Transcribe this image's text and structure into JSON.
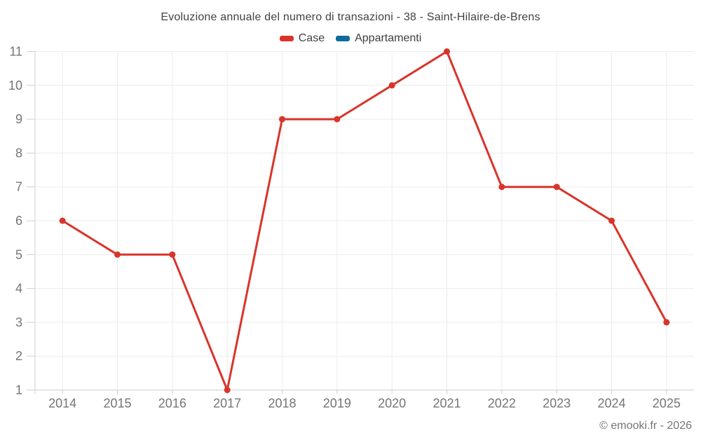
{
  "title": "Evoluzione annuale del numero di transazioni - 38 - Saint-Hilaire-de-Brens",
  "legend": {
    "items": [
      {
        "label": "Case",
        "color": "#d9342b"
      },
      {
        "label": "Appartamenti",
        "color": "#0d6c9a"
      }
    ]
  },
  "watermark": "© emooki.fr - 2026",
  "colors": {
    "grid": "#ececec",
    "axis": "#cfcfcf",
    "tick_label": "#757575",
    "title_text": "#424242",
    "case_red": "#d9342b",
    "appartamenti_blue": "#0d6c9a"
  },
  "chart_data": {
    "type": "line",
    "title": "Evoluzione annuale del numero di transazioni - 38 - Saint-Hilaire-de-Brens",
    "x": [
      "2014",
      "2015",
      "2016",
      "2017",
      "2018",
      "2019",
      "2020",
      "2021",
      "2022",
      "2023",
      "2024",
      "2025"
    ],
    "series": [
      {
        "name": "Case",
        "color": "#d9342b",
        "values": [
          6,
          5,
          5,
          1,
          9,
          9,
          10,
          11,
          7,
          7,
          6,
          3
        ]
      },
      {
        "name": "Appartamenti",
        "color": "#0d6c9a",
        "values": []
      }
    ],
    "xlabel": "",
    "ylabel": "",
    "ylim": [
      1,
      11
    ],
    "yticks": [
      1,
      2,
      3,
      4,
      5,
      6,
      7,
      8,
      9,
      10,
      11
    ],
    "grid": true,
    "legend_position": "top"
  }
}
